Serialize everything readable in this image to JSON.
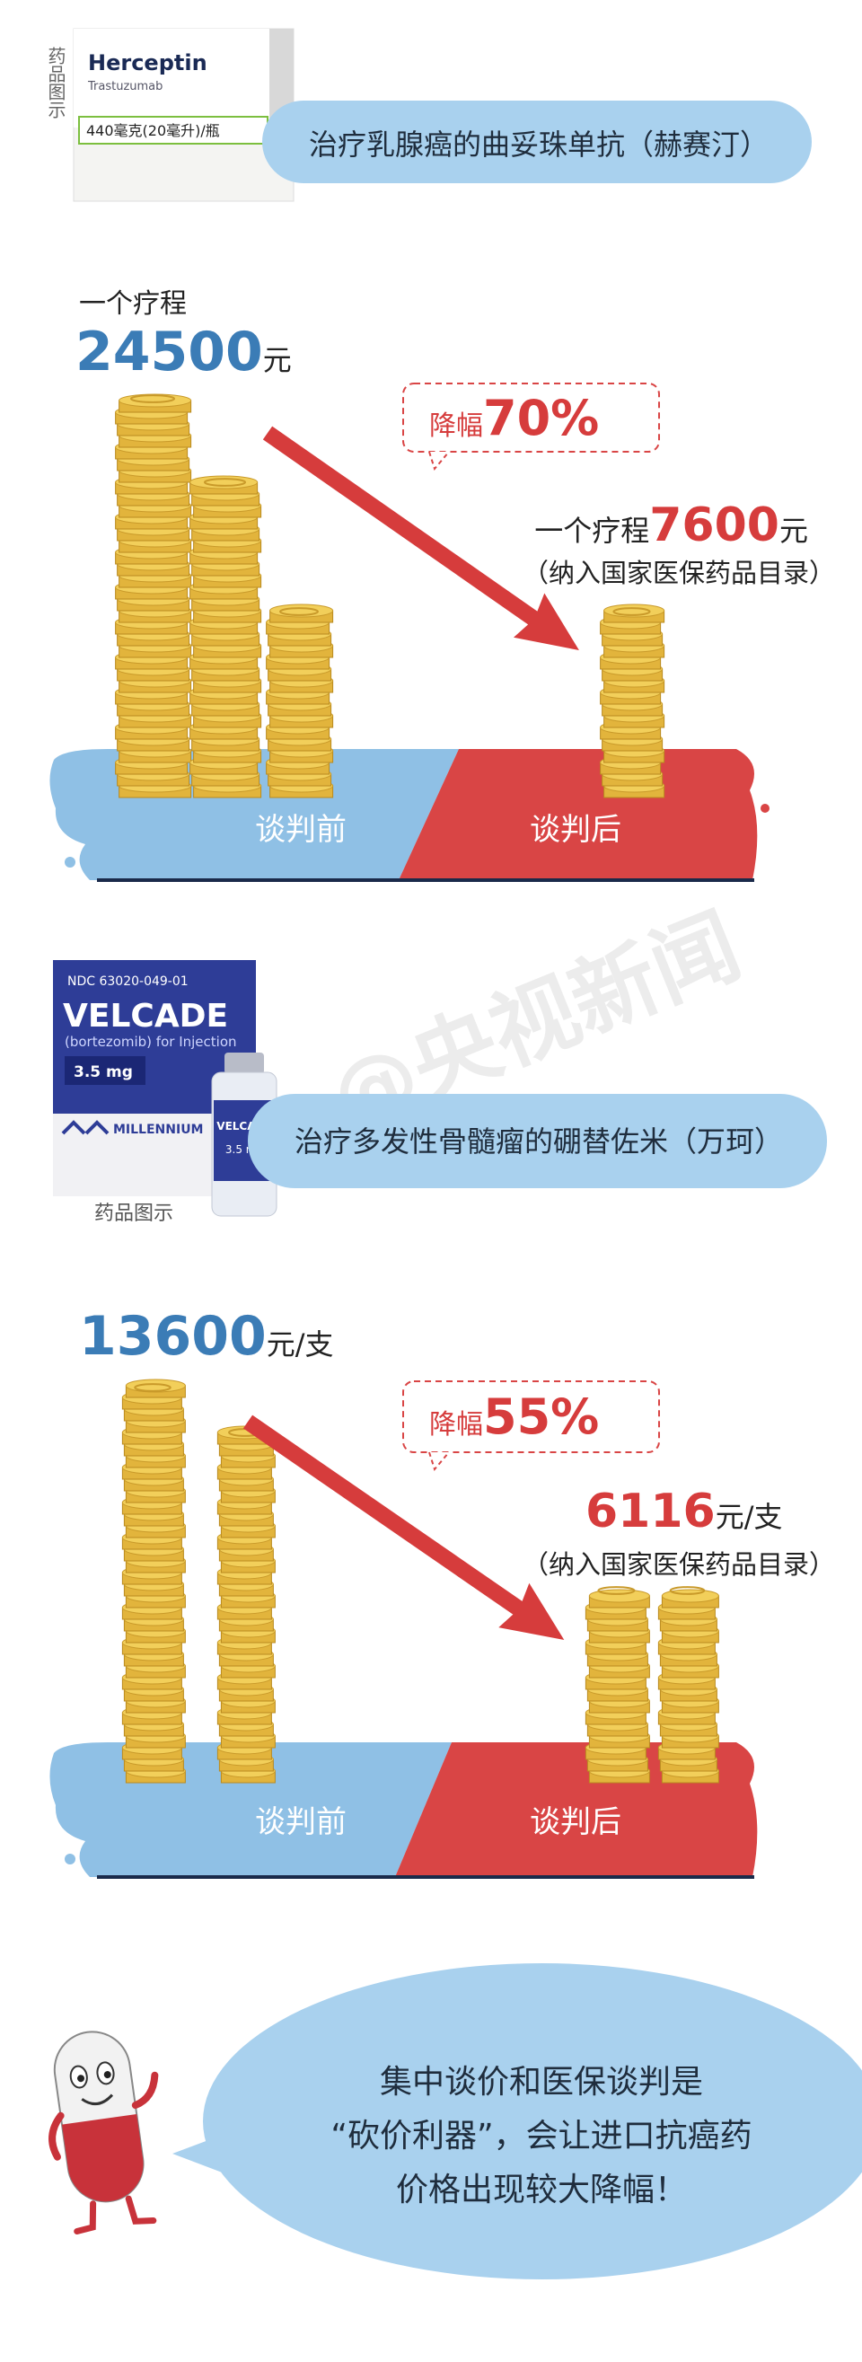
{
  "drug1": {
    "image_caption": "药品图示",
    "box": {
      "brand": "Herceptin",
      "generic": "Trastuzumab",
      "dose": "440毫克(20毫升)/瓶"
    },
    "banner": "治疗乳腺癌的曲妥珠单抗（赫赛汀）",
    "before": {
      "label": "一个疗程",
      "price": "24500",
      "unit": "元"
    },
    "reduction": {
      "label": "降幅",
      "value": "70%"
    },
    "after": {
      "label": "一个疗程",
      "price": "7600",
      "unit": "元",
      "note": "（纳入国家医保药品目录）"
    },
    "base": {
      "before": "谈判前",
      "after": "谈判后"
    }
  },
  "drug2": {
    "image_caption": "药品图示",
    "box": {
      "ndc": "NDC 63020-049-01",
      "brand": "VELCADE",
      "generic": "(bortezomib) for Injection",
      "dose": "3.5 mg",
      "maker": "MILLENNIUM"
    },
    "banner": "治疗多发性骨髓瘤的硼替佐米（万珂）",
    "before": {
      "price": "13600",
      "unit": "元/支"
    },
    "reduction": {
      "label": "降幅",
      "value": "55%"
    },
    "after": {
      "price": "6116",
      "unit": "元/支",
      "note": "（纳入国家医保药品目录）"
    },
    "base": {
      "before": "谈判前",
      "after": "谈判后"
    }
  },
  "watermark": "@央视新闻",
  "conclusion": {
    "lines": [
      "集中谈价和医保谈判是",
      "“砍价利器”，会让进口抗癌药",
      "价格出现较大降幅！"
    ]
  }
}
